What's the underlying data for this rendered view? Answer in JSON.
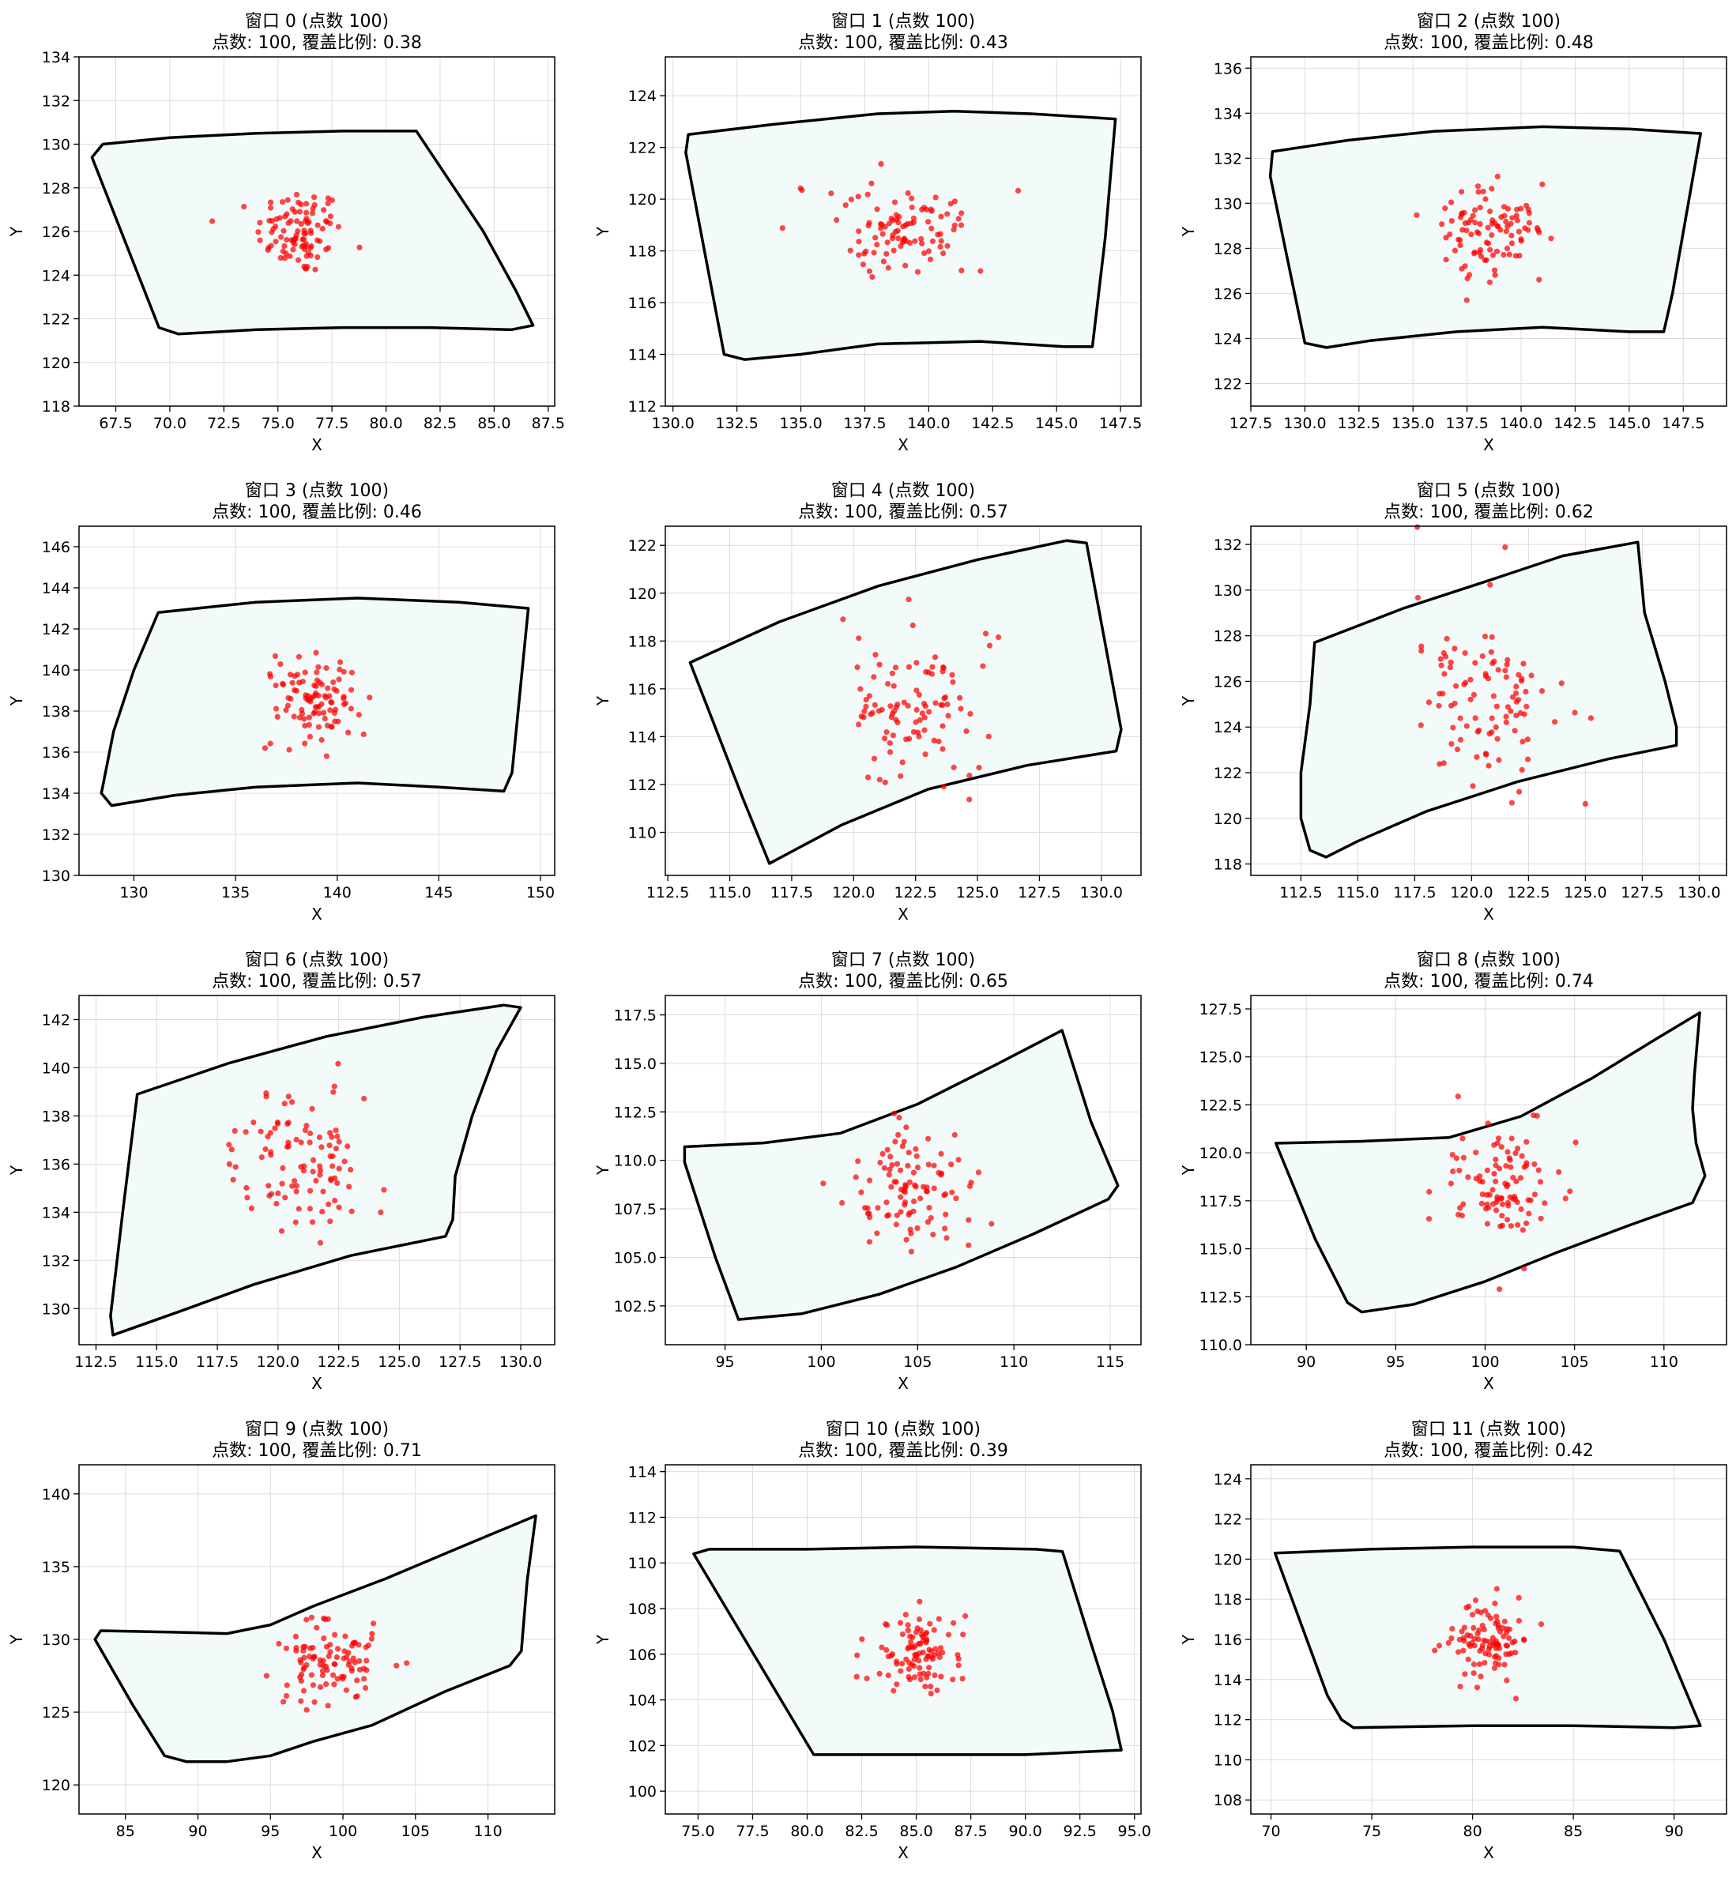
{
  "figure": {
    "xlabel": "X",
    "ylabel": "Y",
    "colors": {
      "boundary": "#000000",
      "fill": "#f3fafa",
      "points": "#ff0000",
      "grid": "#dcdcdc"
    }
  },
  "chart_data": [
    {
      "type": "scatter",
      "title_line1": "窗口 0 (点数 100)",
      "title_line2": "点数: 100, 覆盖比例: 0.38",
      "xlim": [
        65.8,
        87.8
      ],
      "ylim": [
        118,
        134
      ],
      "xticks": [
        67.5,
        70.0,
        72.5,
        75.0,
        77.5,
        80.0,
        82.5,
        85.0,
        87.5
      ],
      "yticks": [
        118,
        120,
        122,
        124,
        126,
        128,
        130,
        132,
        134
      ],
      "center": [
        76.0,
        126.0
      ],
      "spread": [
        1.0,
        1.0
      ],
      "n_points": 100,
      "polygon": [
        [
          66.9,
          130.0
        ],
        [
          70.0,
          130.3
        ],
        [
          74.0,
          130.5
        ],
        [
          78.0,
          130.6
        ],
        [
          81.4,
          130.6
        ],
        [
          84.5,
          126.0
        ],
        [
          86.0,
          123.3
        ],
        [
          86.8,
          121.7
        ],
        [
          85.8,
          121.5
        ],
        [
          82.0,
          121.6
        ],
        [
          78.0,
          121.6
        ],
        [
          74.0,
          121.5
        ],
        [
          70.4,
          121.3
        ],
        [
          69.5,
          121.6
        ],
        [
          66.4,
          129.4
        ]
      ]
    },
    {
      "type": "scatter",
      "title_line1": "窗口 1 (点数 100)",
      "title_line2": "点数: 100, 覆盖比例: 0.43",
      "xlim": [
        129.7,
        148.3
      ],
      "ylim": [
        112,
        125.5
      ],
      "xticks": [
        130.0,
        132.5,
        135.0,
        137.5,
        140.0,
        142.5,
        145.0,
        147.5
      ],
      "yticks": [
        112,
        114,
        116,
        118,
        120,
        122,
        124
      ],
      "center": [
        139.0,
        118.8
      ],
      "spread": [
        1.3,
        0.9
      ],
      "n_points": 100,
      "polygon": [
        [
          130.6,
          122.5
        ],
        [
          134.0,
          122.9
        ],
        [
          138.0,
          123.3
        ],
        [
          141.0,
          123.4
        ],
        [
          144.0,
          123.3
        ],
        [
          147.3,
          123.1
        ],
        [
          146.9,
          118.5
        ],
        [
          146.4,
          114.3
        ],
        [
          145.3,
          114.3
        ],
        [
          142.0,
          114.5
        ],
        [
          138.0,
          114.4
        ],
        [
          135.0,
          114.0
        ],
        [
          132.8,
          113.8
        ],
        [
          132.0,
          114.0
        ],
        [
          130.5,
          121.8
        ]
      ]
    },
    {
      "type": "scatter",
      "title_line1": "窗口 2 (点数 100)",
      "title_line2": "点数: 100, 覆盖比例: 0.48",
      "xlim": [
        127.5,
        149.5
      ],
      "ylim": [
        121,
        136.5
      ],
      "xticks": [
        127.5,
        130.0,
        132.5,
        135.0,
        137.5,
        140.0,
        142.5,
        145.0,
        147.5
      ],
      "yticks": [
        122,
        124,
        126,
        128,
        130,
        132,
        134,
        136
      ],
      "center": [
        138.5,
        128.8
      ],
      "spread": [
        1.3,
        1.1
      ],
      "n_points": 100,
      "polygon": [
        [
          128.5,
          132.3
        ],
        [
          132.0,
          132.8
        ],
        [
          136.0,
          133.2
        ],
        [
          141.0,
          133.4
        ],
        [
          145.0,
          133.3
        ],
        [
          148.3,
          133.1
        ],
        [
          147.0,
          126.0
        ],
        [
          146.6,
          124.3
        ],
        [
          145.0,
          124.3
        ],
        [
          141.0,
          124.5
        ],
        [
          137.0,
          124.3
        ],
        [
          133.0,
          123.9
        ],
        [
          131.0,
          123.6
        ],
        [
          130.0,
          123.8
        ],
        [
          128.4,
          131.2
        ]
      ]
    },
    {
      "type": "scatter",
      "title_line1": "窗口 3 (点数 100)",
      "title_line2": "点数: 100, 覆盖比例: 0.46",
      "xlim": [
        127.3,
        150.7
      ],
      "ylim": [
        130,
        147
      ],
      "xticks": [
        130,
        135,
        140,
        145,
        150
      ],
      "yticks": [
        130,
        132,
        134,
        136,
        138,
        140,
        142,
        144,
        146
      ],
      "center": [
        139.0,
        138.5
      ],
      "spread": [
        1.0,
        1.0
      ],
      "n_points": 100,
      "polygon": [
        [
          131.2,
          142.8
        ],
        [
          136.0,
          143.3
        ],
        [
          141.0,
          143.5
        ],
        [
          146.0,
          143.3
        ],
        [
          149.4,
          143.0
        ],
        [
          149.0,
          139.0
        ],
        [
          148.6,
          135.0
        ],
        [
          148.2,
          134.1
        ],
        [
          145.0,
          134.3
        ],
        [
          141.0,
          134.5
        ],
        [
          136.0,
          134.3
        ],
        [
          132.0,
          133.9
        ],
        [
          128.9,
          133.4
        ],
        [
          128.4,
          134.0
        ],
        [
          129.0,
          137.0
        ],
        [
          130.0,
          140.0
        ]
      ]
    },
    {
      "type": "scatter",
      "title_line1": "窗口 4 (点数 100)",
      "title_line2": "点数: 100, 覆盖比例: 0.57",
      "xlim": [
        112.4,
        131.6
      ],
      "ylim": [
        108.2,
        122.8
      ],
      "xticks": [
        112.5,
        115.0,
        117.5,
        120.0,
        122.5,
        125.0,
        127.5,
        130.0
      ],
      "yticks": [
        110,
        112,
        114,
        116,
        118,
        120,
        122
      ],
      "center": [
        122.5,
        115.5
      ],
      "spread": [
        1.6,
        1.5
      ],
      "n_points": 100,
      "polygon": [
        [
          113.4,
          117.1
        ],
        [
          117.0,
          118.8
        ],
        [
          121.0,
          120.3
        ],
        [
          125.0,
          121.4
        ],
        [
          128.6,
          122.2
        ],
        [
          129.4,
          122.1
        ],
        [
          130.8,
          114.3
        ],
        [
          130.6,
          113.4
        ],
        [
          127.0,
          112.8
        ],
        [
          123.0,
          111.8
        ],
        [
          119.5,
          110.3
        ],
        [
          116.6,
          108.7
        ],
        [
          115.5,
          111.5
        ]
      ]
    },
    {
      "type": "scatter",
      "title_line1": "窗口 5 (点数 100)",
      "title_line2": "点数: 100, 覆盖比例: 0.62",
      "xlim": [
        110.3,
        131.2
      ],
      "ylim": [
        117.5,
        132.8
      ],
      "xticks": [
        112.5,
        115.0,
        117.5,
        120.0,
        122.5,
        125.0,
        127.5,
        130.0
      ],
      "yticks": [
        118,
        120,
        122,
        124,
        126,
        128,
        130,
        132
      ],
      "center": [
        120.5,
        125.5
      ],
      "spread": [
        1.5,
        1.8
      ],
      "n_points": 100,
      "polygon": [
        [
          113.1,
          127.7
        ],
        [
          117.0,
          129.2
        ],
        [
          121.0,
          130.5
        ],
        [
          124.0,
          131.5
        ],
        [
          127.3,
          132.1
        ],
        [
          127.6,
          129.0
        ],
        [
          128.5,
          126.0
        ],
        [
          129.0,
          124.0
        ],
        [
          129.0,
          123.2
        ],
        [
          126.0,
          122.6
        ],
        [
          122.0,
          121.6
        ],
        [
          118.0,
          120.3
        ],
        [
          115.0,
          119.0
        ],
        [
          113.6,
          118.3
        ],
        [
          112.9,
          118.6
        ],
        [
          112.5,
          120.0
        ],
        [
          112.5,
          122.0
        ],
        [
          112.9,
          125.0
        ]
      ]
    },
    {
      "type": "scatter",
      "title_line1": "窗口 6 (点数 100)",
      "title_line2": "点数: 100, 覆盖比例: 0.57",
      "xlim": [
        111.8,
        131.4
      ],
      "ylim": [
        128.5,
        143.0
      ],
      "xticks": [
        112.5,
        115.0,
        117.5,
        120.0,
        122.5,
        125.0,
        127.5,
        130.0
      ],
      "yticks": [
        130,
        132,
        134,
        136,
        138,
        140,
        142
      ],
      "center": [
        121.0,
        136.0
      ],
      "spread": [
        1.5,
        1.4
      ],
      "n_points": 100,
      "polygon": [
        [
          114.2,
          138.9
        ],
        [
          118.0,
          140.2
        ],
        [
          122.0,
          141.3
        ],
        [
          126.0,
          142.1
        ],
        [
          129.3,
          142.6
        ],
        [
          130.0,
          142.5
        ],
        [
          129.0,
          140.7
        ],
        [
          128.0,
          138.0
        ],
        [
          127.3,
          135.5
        ],
        [
          127.2,
          133.7
        ],
        [
          126.9,
          133.0
        ],
        [
          123.0,
          132.2
        ],
        [
          119.0,
          131.0
        ],
        [
          116.0,
          129.9
        ],
        [
          113.2,
          128.9
        ],
        [
          113.1,
          129.7
        ],
        [
          113.6,
          134.0
        ]
      ]
    },
    {
      "type": "scatter",
      "title_line1": "窗口 7 (点数 100)",
      "title_line2": "点数: 100, 覆盖比例: 0.65",
      "xlim": [
        91.9,
        116.6
      ],
      "ylim": [
        100.5,
        118.5
      ],
      "xticks": [
        95,
        100,
        105,
        110,
        115
      ],
      "yticks": [
        102.5,
        105.0,
        107.5,
        110.0,
        112.5,
        115.0,
        117.5
      ],
      "center": [
        104.5,
        108.5
      ],
      "spread": [
        1.6,
        1.5
      ],
      "n_points": 100,
      "polygon": [
        [
          92.9,
          110.7
        ],
        [
          97.0,
          110.9
        ],
        [
          101.0,
          111.4
        ],
        [
          105.0,
          112.9
        ],
        [
          109.0,
          114.9
        ],
        [
          112.5,
          116.7
        ],
        [
          114.0,
          112.0
        ],
        [
          115.4,
          108.7
        ],
        [
          114.9,
          108.0
        ],
        [
          111.0,
          106.2
        ],
        [
          107.0,
          104.5
        ],
        [
          103.0,
          103.1
        ],
        [
          99.0,
          102.1
        ],
        [
          95.7,
          101.8
        ],
        [
          94.5,
          105.0
        ],
        [
          92.9,
          109.9
        ]
      ]
    },
    {
      "type": "scatter",
      "title_line1": "窗口 8 (点数 100)",
      "title_line2": "点数: 100, 覆盖比例: 0.74",
      "xlim": [
        86.9,
        113.5
      ],
      "ylim": [
        110.0,
        128.2
      ],
      "xticks": [
        90,
        95,
        100,
        105,
        110
      ],
      "yticks": [
        110.0,
        112.5,
        115.0,
        117.5,
        120.0,
        122.5,
        125.0,
        127.5
      ],
      "center": [
        101.0,
        118.5
      ],
      "spread": [
        1.5,
        1.5
      ],
      "n_points": 100,
      "polygon": [
        [
          88.3,
          120.5
        ],
        [
          93.0,
          120.6
        ],
        [
          98.0,
          120.8
        ],
        [
          102.0,
          121.9
        ],
        [
          106.0,
          123.9
        ],
        [
          109.5,
          125.9
        ],
        [
          112.0,
          127.3
        ],
        [
          111.7,
          124.0
        ],
        [
          111.6,
          122.3
        ],
        [
          111.8,
          120.5
        ],
        [
          112.3,
          118.8
        ],
        [
          111.6,
          117.4
        ],
        [
          108.0,
          116.2
        ],
        [
          104.0,
          114.8
        ],
        [
          100.0,
          113.3
        ],
        [
          96.0,
          112.1
        ],
        [
          93.1,
          111.7
        ],
        [
          92.3,
          112.2
        ],
        [
          90.5,
          115.5
        ]
      ]
    },
    {
      "type": "scatter",
      "title_line1": "窗口 9 (点数 100)",
      "title_line2": "点数: 100, 覆盖比例: 0.71",
      "xlim": [
        81.8,
        114.6
      ],
      "ylim": [
        118,
        142
      ],
      "xticks": [
        85,
        90,
        95,
        100,
        105,
        110
      ],
      "yticks": [
        120,
        125,
        130,
        135,
        140
      ],
      "center": [
        99.0,
        128.5
      ],
      "spread": [
        2.0,
        1.5
      ],
      "n_points": 100,
      "polygon": [
        [
          83.3,
          130.6
        ],
        [
          88.0,
          130.5
        ],
        [
          92.0,
          130.4
        ],
        [
          95.0,
          131.0
        ],
        [
          98.0,
          132.3
        ],
        [
          103.0,
          134.2
        ],
        [
          108.0,
          136.3
        ],
        [
          113.3,
          138.5
        ],
        [
          112.7,
          134.0
        ],
        [
          112.3,
          129.2
        ],
        [
          111.5,
          128.2
        ],
        [
          107.0,
          126.4
        ],
        [
          102.0,
          124.1
        ],
        [
          98.0,
          123.0
        ],
        [
          95.0,
          122.0
        ],
        [
          92.0,
          121.6
        ],
        [
          89.2,
          121.6
        ],
        [
          87.7,
          122.0
        ],
        [
          85.5,
          125.5
        ],
        [
          82.9,
          130.0
        ]
      ]
    },
    {
      "type": "scatter",
      "title_line1": "窗口 10 (点数 100)",
      "title_line2": "点数: 100, 覆盖比例: 0.39",
      "xlim": [
        73.5,
        95.3
      ],
      "ylim": [
        99,
        114.3
      ],
      "xticks": [
        75.0,
        77.5,
        80.0,
        82.5,
        85.0,
        87.5,
        90.0,
        92.5,
        95.0
      ],
      "yticks": [
        100,
        102,
        104,
        106,
        108,
        110,
        112,
        114
      ],
      "center": [
        85.0,
        106.0
      ],
      "spread": [
        0.9,
        0.9
      ],
      "n_points": 100,
      "polygon": [
        [
          74.8,
          110.4
        ],
        [
          75.5,
          110.6
        ],
        [
          80.0,
          110.6
        ],
        [
          85.0,
          110.7
        ],
        [
          90.5,
          110.6
        ],
        [
          91.7,
          110.5
        ],
        [
          93.0,
          106.5
        ],
        [
          94.0,
          103.5
        ],
        [
          94.4,
          101.8
        ],
        [
          90.0,
          101.6
        ],
        [
          85.0,
          101.6
        ],
        [
          80.3,
          101.6
        ]
      ]
    },
    {
      "type": "scatter",
      "title_line1": "窗口 11 (点数 100)",
      "title_line2": "点数: 100, 覆盖比例: 0.42",
      "xlim": [
        69.0,
        92.6
      ],
      "ylim": [
        107.3,
        124.7
      ],
      "xticks": [
        70,
        75,
        80,
        85,
        90
      ],
      "yticks": [
        108,
        110,
        112,
        114,
        116,
        118,
        120,
        122,
        124
      ],
      "center": [
        80.8,
        116.0
      ],
      "spread": [
        1.0,
        1.0
      ],
      "n_points": 100,
      "polygon": [
        [
          70.2,
          120.3
        ],
        [
          75.0,
          120.5
        ],
        [
          80.0,
          120.6
        ],
        [
          85.0,
          120.6
        ],
        [
          87.3,
          120.4
        ],
        [
          89.5,
          116.0
        ],
        [
          91.3,
          111.7
        ],
        [
          90.0,
          111.6
        ],
        [
          85.0,
          111.7
        ],
        [
          80.0,
          111.7
        ],
        [
          74.1,
          111.6
        ],
        [
          73.5,
          112.0
        ],
        [
          72.8,
          113.2
        ]
      ]
    }
  ]
}
